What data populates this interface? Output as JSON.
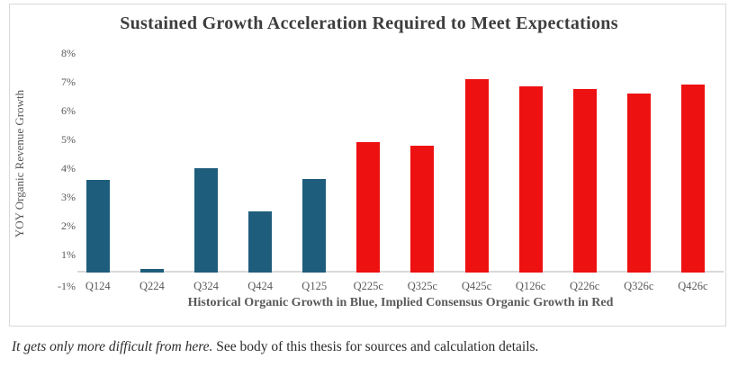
{
  "title": "Sustained Growth Acceleration Required to Meet Expectations",
  "y_axis": {
    "title": "YOY Organic Revenue Growth",
    "tick_labels": [
      "8%",
      "7%",
      "6%",
      "5%",
      "4%",
      "3%",
      "2%",
      "1%",
      "-1%"
    ],
    "tick_values": [
      8,
      7,
      6,
      5,
      4,
      3,
      2,
      1,
      -1
    ]
  },
  "x_axis": {
    "title": "Historical Organic Growth in Blue, Implied Consensus Organic Growth in Red"
  },
  "footnote": {
    "italic": "It gets only more difficult from here.",
    "regular": " See body of this thesis for sources and calculation details."
  },
  "colors": {
    "historical_blue": "#1f5d7d",
    "consensus_red": "#ee1111",
    "axis_text": "#595959",
    "title_text": "#3d3d3d",
    "border_gray": "#d9d9d9"
  },
  "chart_data": {
    "type": "bar",
    "title": "Sustained Growth Acceleration Required to Meet Expectations",
    "xlabel": "Historical Organic Growth in Blue, Implied Consensus Organic Growth in Red",
    "ylabel": "YOY Organic Revenue Growth",
    "ylim": [
      -1,
      8
    ],
    "grid": false,
    "legend_position": "none",
    "value_unit": "percent",
    "categories": [
      "Q124",
      "Q224",
      "Q324",
      "Q424",
      "Q125",
      "Q225c",
      "Q325c",
      "Q425c",
      "Q126c",
      "Q226c",
      "Q326c",
      "Q426c"
    ],
    "series": [
      {
        "name": "Historical Organic Growth",
        "color": "#1f5d7d",
        "values": [
          3.6,
          0.1,
          4.0,
          2.5,
          3.65,
          null,
          null,
          null,
          null,
          null,
          null,
          null
        ]
      },
      {
        "name": "Implied Consensus Organic Growth",
        "color": "#ee1111",
        "values": [
          null,
          null,
          null,
          null,
          null,
          4.9,
          4.8,
          7.1,
          6.85,
          6.75,
          6.6,
          6.9
        ]
      }
    ]
  }
}
